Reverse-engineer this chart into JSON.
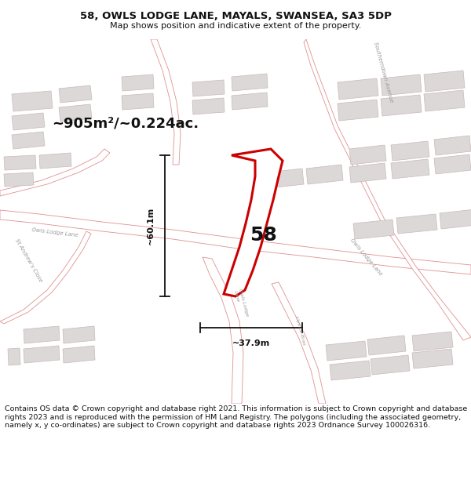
{
  "title": "58, OWLS LODGE LANE, MAYALS, SWANSEA, SA3 5DP",
  "subtitle": "Map shows position and indicative extent of the property.",
  "footer": "Contains OS data © Crown copyright and database right 2021. This information is subject to Crown copyright and database rights 2023 and is reproduced with the permission of HM Land Registry. The polygons (including the associated geometry, namely x, y co-ordinates) are subject to Crown copyright and database rights 2023 Ordnance Survey 100026316.",
  "area_label": "~905m²/~0.224ac.",
  "width_label": "~37.9m",
  "height_label": "~60.1m",
  "plot_number": "58",
  "map_bg": "#f5f0f0",
  "building_fill": "#ddd8d8",
  "building_edge": "#c8b8b8",
  "road_fill": "#ffffff",
  "road_edge": "#e09090",
  "plot_fill": "#ffffff",
  "plot_edge": "#cc0000",
  "dim_color": "#111111",
  "text_color": "#111111",
  "street_color": "#999999",
  "title_size": 9.5,
  "subtitle_size": 8,
  "footer_size": 6.8,
  "area_size": 13,
  "dim_size": 8,
  "plot_label_size": 18,
  "street_size": 5
}
